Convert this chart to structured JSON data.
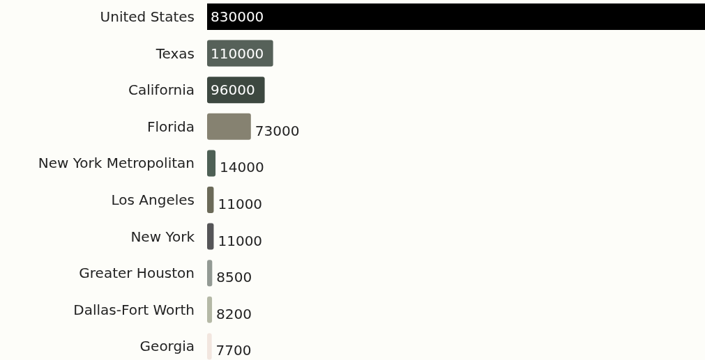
{
  "chart_data": {
    "type": "bar",
    "orientation": "horizontal",
    "categories": [
      "United States",
      "Texas",
      "California",
      "Florida",
      "New York Metropolitan",
      "Los Angeles",
      "New York",
      "Greater Houston",
      "Dallas-Fort Worth",
      "Georgia"
    ],
    "values": [
      830000,
      110000,
      96000,
      73000,
      14000,
      11000,
      11000,
      8500,
      8200,
      7700
    ],
    "colors": [
      "#000000",
      "#566159",
      "#3d4840",
      "#868271",
      "#4e6055",
      "#6b6a58",
      "#555557",
      "#939a94",
      "#b5b9a6",
      "#f2e6df"
    ],
    "data_labels": true
  }
}
